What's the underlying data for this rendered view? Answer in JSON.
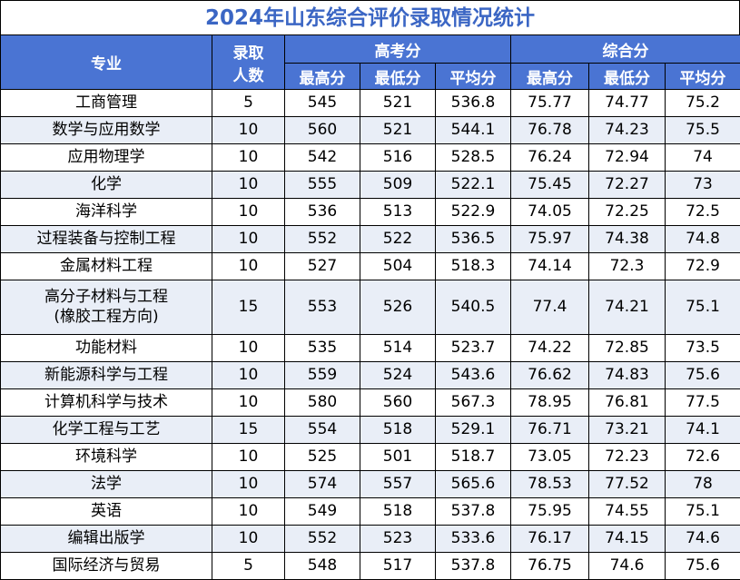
{
  "title": "2024年山东综合评价录取情况统计",
  "headers": {
    "major": "专业",
    "count_line1": "录取",
    "count_line2": "人数",
    "gaokao": "高考分",
    "composite": "综合分",
    "max": "最高分",
    "min": "最低分",
    "avg": "平均分"
  },
  "rows": [
    {
      "major": "工商管理",
      "major2": "",
      "count": "5",
      "g_max": "545",
      "g_min": "521",
      "g_avg": "536.8",
      "c_max": "75.77",
      "c_min": "74.77",
      "c_avg": "75.2"
    },
    {
      "major": "数学与应用数学",
      "major2": "",
      "count": "10",
      "g_max": "560",
      "g_min": "521",
      "g_avg": "544.1",
      "c_max": "76.78",
      "c_min": "74.23",
      "c_avg": "75.5"
    },
    {
      "major": "应用物理学",
      "major2": "",
      "count": "10",
      "g_max": "542",
      "g_min": "516",
      "g_avg": "528.5",
      "c_max": "76.24",
      "c_min": "72.94",
      "c_avg": "74"
    },
    {
      "major": "化学",
      "major2": "",
      "count": "10",
      "g_max": "555",
      "g_min": "509",
      "g_avg": "522.1",
      "c_max": "75.45",
      "c_min": "72.27",
      "c_avg": "73"
    },
    {
      "major": "海洋科学",
      "major2": "",
      "count": "10",
      "g_max": "536",
      "g_min": "513",
      "g_avg": "522.9",
      "c_max": "74.05",
      "c_min": "72.25",
      "c_avg": "72.5"
    },
    {
      "major": "过程装备与控制工程",
      "major2": "",
      "count": "10",
      "g_max": "552",
      "g_min": "522",
      "g_avg": "536.5",
      "c_max": "75.97",
      "c_min": "74.38",
      "c_avg": "74.8"
    },
    {
      "major": "金属材料工程",
      "major2": "",
      "count": "10",
      "g_max": "527",
      "g_min": "504",
      "g_avg": "518.3",
      "c_max": "74.14",
      "c_min": "72.3",
      "c_avg": "72.9"
    },
    {
      "major": "高分子材料与工程",
      "major2": "(橡胶工程方向)",
      "count": "15",
      "g_max": "553",
      "g_min": "526",
      "g_avg": "540.5",
      "c_max": "77.4",
      "c_min": "74.21",
      "c_avg": "75.1"
    },
    {
      "major": "功能材料",
      "major2": "",
      "count": "10",
      "g_max": "535",
      "g_min": "514",
      "g_avg": "523.7",
      "c_max": "74.22",
      "c_min": "72.85",
      "c_avg": "73.5"
    },
    {
      "major": "新能源科学与工程",
      "major2": "",
      "count": "10",
      "g_max": "559",
      "g_min": "524",
      "g_avg": "543.6",
      "c_max": "76.62",
      "c_min": "74.83",
      "c_avg": "75.6"
    },
    {
      "major": "计算机科学与技术",
      "major2": "",
      "count": "10",
      "g_max": "580",
      "g_min": "560",
      "g_avg": "567.3",
      "c_max": "78.95",
      "c_min": "76.81",
      "c_avg": "77.5"
    },
    {
      "major": "化学工程与工艺",
      "major2": "",
      "count": "15",
      "g_max": "554",
      "g_min": "518",
      "g_avg": "529.1",
      "c_max": "76.71",
      "c_min": "73.21",
      "c_avg": "74.1"
    },
    {
      "major": "环境科学",
      "major2": "",
      "count": "10",
      "g_max": "525",
      "g_min": "501",
      "g_avg": "518.7",
      "c_max": "73.05",
      "c_min": "72.23",
      "c_avg": "72.6"
    },
    {
      "major": "法学",
      "major2": "",
      "count": "10",
      "g_max": "574",
      "g_min": "557",
      "g_avg": "565.6",
      "c_max": "78.53",
      "c_min": "77.52",
      "c_avg": "78"
    },
    {
      "major": "英语",
      "major2": "",
      "count": "10",
      "g_max": "549",
      "g_min": "518",
      "g_avg": "537.8",
      "c_max": "75.95",
      "c_min": "74.55",
      "c_avg": "75.1"
    },
    {
      "major": "编辑出版学",
      "major2": "",
      "count": "10",
      "g_max": "552",
      "g_min": "523",
      "g_avg": "533.6",
      "c_max": "76.17",
      "c_min": "74.15",
      "c_avg": "74.6"
    },
    {
      "major": "国际经济与贸易",
      "major2": "",
      "count": "5",
      "g_max": "548",
      "g_min": "517",
      "g_avg": "537.8",
      "c_max": "76.75",
      "c_min": "74.6",
      "c_avg": "75.6"
    }
  ]
}
